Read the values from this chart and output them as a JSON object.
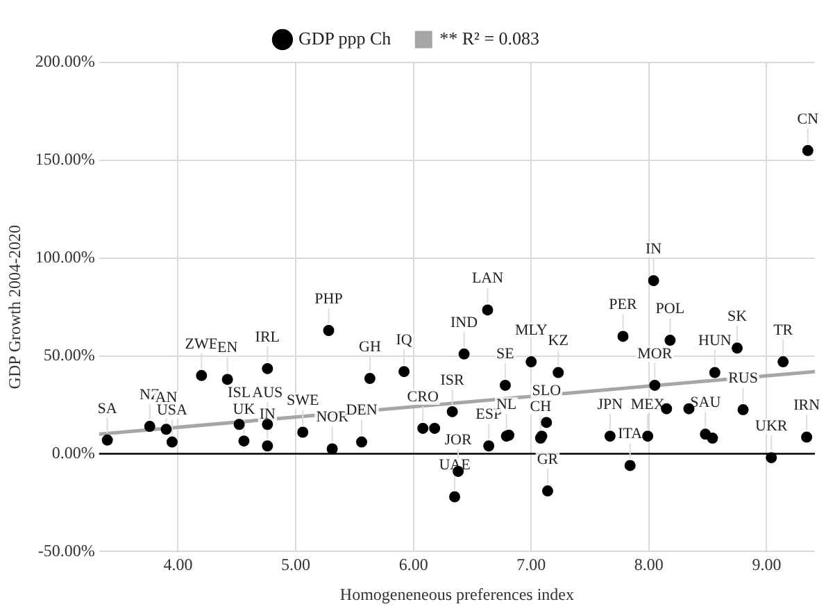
{
  "chart_data": {
    "type": "scatter",
    "xlabel": "Homogeneneous preferences index",
    "ylabel": "GDP Growth 2004-2020",
    "xlim": [
      3.33,
      9.41
    ],
    "ylim": [
      -50,
      200
    ],
    "xticks": [
      {
        "value": 4,
        "label": "4.00"
      },
      {
        "value": 5,
        "label": "5.00"
      },
      {
        "value": 6,
        "label": "6.00"
      },
      {
        "value": 7,
        "label": "7.00"
      },
      {
        "value": 8,
        "label": "8.00"
      },
      {
        "value": 9,
        "label": "9.00"
      }
    ],
    "yticks": [
      {
        "value": -50,
        "label": "-50.00%"
      },
      {
        "value": 0,
        "label": "0.00%"
      },
      {
        "value": 50,
        "label": "50.00%"
      },
      {
        "value": 100,
        "label": "100.00%"
      },
      {
        "value": 150,
        "label": "150.00%"
      },
      {
        "value": 200,
        "label": "200.00%"
      }
    ],
    "grid": true,
    "legend": "top",
    "ref_lines": [
      {
        "axis": "y",
        "value": 0,
        "color": "#000000"
      }
    ],
    "series": [
      {
        "name": "GDP ppp Ch",
        "type": "scatter",
        "marker": "circle",
        "color": "#000000",
        "x": [
          3.4,
          3.76,
          3.9,
          3.95,
          4.2,
          4.42,
          4.76,
          4.52,
          4.56,
          4.76,
          4.76,
          5.06,
          5.31,
          5.28,
          5.56,
          5.63,
          5.92,
          6.08,
          6.18,
          6.33,
          6.38,
          6.35,
          6.43,
          6.63,
          6.64,
          6.78,
          6.79,
          6.81,
          7.0,
          7.23,
          7.13,
          7.08,
          7.09,
          7.14,
          7.78,
          8.04,
          8.18,
          8.75,
          9.14,
          8.05,
          8.56,
          8.8,
          9.04,
          9.34,
          7.67,
          7.99,
          7.84,
          8.48,
          8.54,
          8.15,
          8.34,
          9.35
        ],
        "values": [
          7,
          14,
          12.5,
          6,
          40,
          38,
          43.5,
          15,
          6.5,
          15,
          4,
          11,
          2.5,
          63,
          6,
          38.5,
          42,
          13,
          13,
          21.5,
          -9,
          -22,
          51,
          73.5,
          4,
          35,
          9,
          9.5,
          47,
          41.5,
          16,
          8,
          9,
          -19,
          60,
          88.5,
          58,
          54,
          47,
          35,
          41.5,
          22.5,
          -2,
          8.5,
          9,
          9,
          -6,
          10,
          8,
          23,
          23,
          155
        ]
      },
      {
        "name": "** R² = 0.083",
        "type": "line",
        "marker": "none",
        "color": "#a6a6a6",
        "x": [
          3.33,
          9.41
        ],
        "values": [
          10,
          42
        ]
      }
    ],
    "annotations": [
      {
        "text": "SA",
        "x": 3.4,
        "y": 7
      },
      {
        "text": "NZ",
        "x": 3.76,
        "y": 14
      },
      {
        "text": "AN",
        "x": 3.9,
        "y": 12.5
      },
      {
        "text": "USA",
        "x": 3.95,
        "y": 6
      },
      {
        "text": "ZWE",
        "x": 4.2,
        "y": 40
      },
      {
        "text": "EN",
        "x": 4.42,
        "y": 38
      },
      {
        "text": "IRL",
        "x": 4.76,
        "y": 43.5
      },
      {
        "text": "ISL",
        "x": 4.52,
        "y": 15
      },
      {
        "text": "UK",
        "x": 4.56,
        "y": 6.5
      },
      {
        "text": "AUS",
        "x": 4.76,
        "y": 15
      },
      {
        "text": "IN",
        "x": 4.76,
        "y": 4
      },
      {
        "text": "SWE",
        "x": 5.06,
        "y": 11
      },
      {
        "text": "NOR",
        "x": 5.31,
        "y": 2.5
      },
      {
        "text": "PHP",
        "x": 5.28,
        "y": 63
      },
      {
        "text": "DEN",
        "x": 5.56,
        "y": 6
      },
      {
        "text": "GH",
        "x": 5.63,
        "y": 38.5
      },
      {
        "text": "IQ",
        "x": 5.92,
        "y": 42
      },
      {
        "text": "CRO",
        "x": 6.08,
        "y": 13
      },
      {
        "text": "ISR",
        "x": 6.33,
        "y": 21.5
      },
      {
        "text": "JOR",
        "x": 6.38,
        "y": -9
      },
      {
        "text": "UAE",
        "x": 6.35,
        "y": -22
      },
      {
        "text": "IND",
        "x": 6.43,
        "y": 51
      },
      {
        "text": "LAN",
        "x": 6.63,
        "y": 73.5
      },
      {
        "text": "ESP",
        "x": 6.64,
        "y": 4
      },
      {
        "text": "SE",
        "x": 6.78,
        "y": 35
      },
      {
        "text": "NL",
        "x": 6.79,
        "y": 9
      },
      {
        "text": "MLY",
        "x": 7.0,
        "y": 47
      },
      {
        "text": "KZ",
        "x": 7.23,
        "y": 41.5
      },
      {
        "text": "SLO",
        "x": 7.13,
        "y": 16
      },
      {
        "text": "CH",
        "x": 7.08,
        "y": 8
      },
      {
        "text": "GR",
        "x": 7.14,
        "y": -19
      },
      {
        "text": "PER",
        "x": 7.78,
        "y": 60
      },
      {
        "text": "IN",
        "x": 8.04,
        "y": 88.5
      },
      {
        "text": "POL",
        "x": 8.18,
        "y": 58
      },
      {
        "text": "SK",
        "x": 8.75,
        "y": 54
      },
      {
        "text": "TR",
        "x": 9.14,
        "y": 47
      },
      {
        "text": "MOR",
        "x": 8.05,
        "y": 35
      },
      {
        "text": "HUN",
        "x": 8.56,
        "y": 41.5
      },
      {
        "text": "RUS",
        "x": 8.8,
        "y": 22.5
      },
      {
        "text": "UKR",
        "x": 9.04,
        "y": -2
      },
      {
        "text": "IRN",
        "x": 9.34,
        "y": 8.5
      },
      {
        "text": "JPN",
        "x": 7.67,
        "y": 9
      },
      {
        "text": "MEX",
        "x": 7.99,
        "y": 9
      },
      {
        "text": "ITA",
        "x": 7.84,
        "y": -6
      },
      {
        "text": "SAU",
        "x": 8.48,
        "y": 10
      },
      {
        "text": "CN",
        "x": 9.35,
        "y": 155
      }
    ]
  }
}
